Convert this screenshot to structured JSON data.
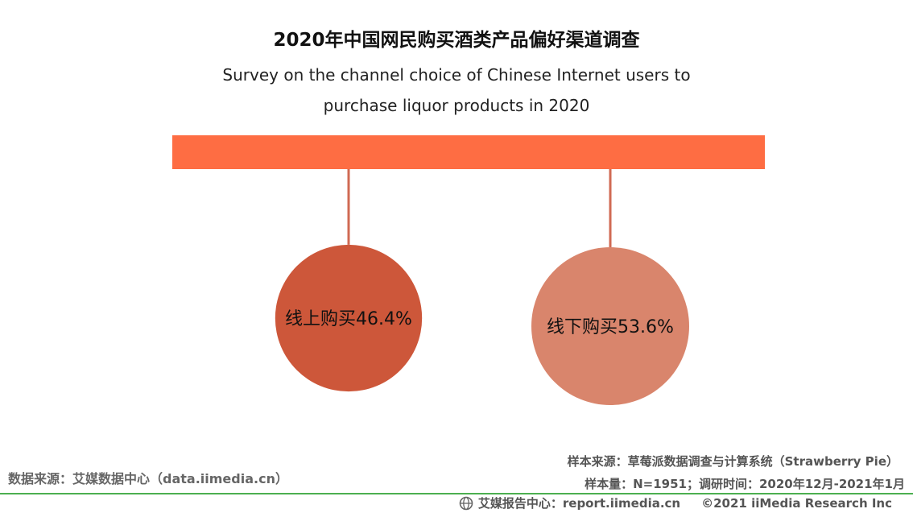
{
  "chart_data": {
    "type": "bubble",
    "title": "2020年中国网民购买酒类产品偏好渠道调查",
    "subtitle_line1": "Survey on the channel choice of Chinese Internet users to",
    "subtitle_line2": "purchase liquor products in 2020",
    "categories": [
      "线上购买",
      "线下购买"
    ],
    "values": [
      46.4,
      53.6
    ],
    "unit": "%",
    "labels": [
      "线上购买46.4%",
      "线下购买53.6%"
    ],
    "colors": [
      "#cd573a",
      "#d9856c"
    ],
    "bar_color": "#fe6d43",
    "connector_color": "#d06a53"
  },
  "source": {
    "left": "数据来源：艾媒数据中心（data.iimedia.cn）",
    "sample_source": "样本来源：草莓派数据调查与计算系统（Strawberry Pie）",
    "sample_size": "样本量：N=1951；调研时间：2020年12月-2021年1月"
  },
  "footer": {
    "report_center": "艾媒报告中心：report.iimedia.cn",
    "copyright": "©2021  iiMedia Research  Inc"
  }
}
